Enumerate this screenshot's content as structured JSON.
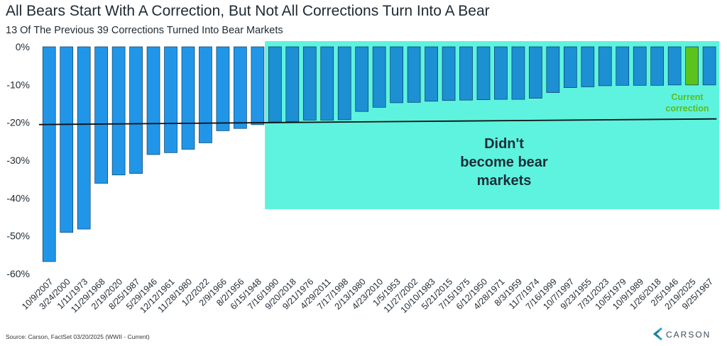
{
  "header": {
    "title": "All Bears Start With A Correction, But Not All Corrections Turn Into A Bear",
    "subtitle": "13 Of The Previous 39 Corrections Turned Into Bear Markets"
  },
  "footer": {
    "source": "Source: Carson, FactSet 03/20/2025 (WWII - Current)",
    "logo_text": "CARSON"
  },
  "colors": {
    "bar": "#2196e8",
    "bar_highlight_region": "#1c90d3",
    "current_bar": "#5cc21c",
    "region": "#5ef3de",
    "line": "#111111"
  },
  "chart_data": {
    "type": "bar",
    "categories": [
      "10/9/2007",
      "3/24/2000",
      "1/11/1973",
      "11/29/1968",
      "2/19/2020",
      "8/25/1987",
      "5/29/1946",
      "12/12/1961",
      "11/28/1980",
      "1/2/2022",
      "2/9/1966",
      "8/2/1956",
      "6/15/1948",
      "7/16/1990",
      "9/20/2018",
      "9/21/1976",
      "4/29/2011",
      "7/17/1998",
      "2/13/1980",
      "4/23/2010",
      "1/5/1953",
      "11/27/2002",
      "10/10/1983",
      "5/21/2015",
      "7/15/1975",
      "6/12/1950",
      "4/28/1971",
      "8/3/1959",
      "11/7/1974",
      "7/16/1999",
      "10/7/1997",
      "9/23/1955",
      "7/31/2023",
      "10/5/1979",
      "10/9/1989",
      "1/26/2018",
      "2/5/1946",
      "2/19/2025",
      "9/25/1967"
    ],
    "values": [
      -56.8,
      -49.1,
      -48.2,
      -36.1,
      -33.9,
      -33.5,
      -28.5,
      -28.0,
      -27.1,
      -25.4,
      -22.2,
      -21.6,
      -20.6,
      -19.9,
      -19.8,
      -19.4,
      -19.4,
      -19.3,
      -17.1,
      -16.0,
      -14.8,
      -14.7,
      -14.4,
      -14.2,
      -14.1,
      -14.0,
      -13.9,
      -13.9,
      -13.6,
      -12.1,
      -10.8,
      -10.6,
      -10.3,
      -10.2,
      -10.2,
      -10.2,
      -10.1,
      -10.1,
      -10.1
    ],
    "ylim": [
      -60,
      0
    ],
    "yticks": [
      "0%",
      "-10%",
      "-20%",
      "-30%",
      "-40%",
      "-50%",
      "-60%"
    ],
    "ytick_values": [
      0,
      -10,
      -20,
      -30,
      -40,
      -50,
      -60
    ],
    "bear_threshold": -20,
    "non_bear_start_index": 13,
    "current_index": 37,
    "annotations": {
      "region_label": [
        "Didn't",
        "become bear",
        "markets"
      ],
      "current_label": [
        "Current",
        "correction"
      ]
    }
  }
}
